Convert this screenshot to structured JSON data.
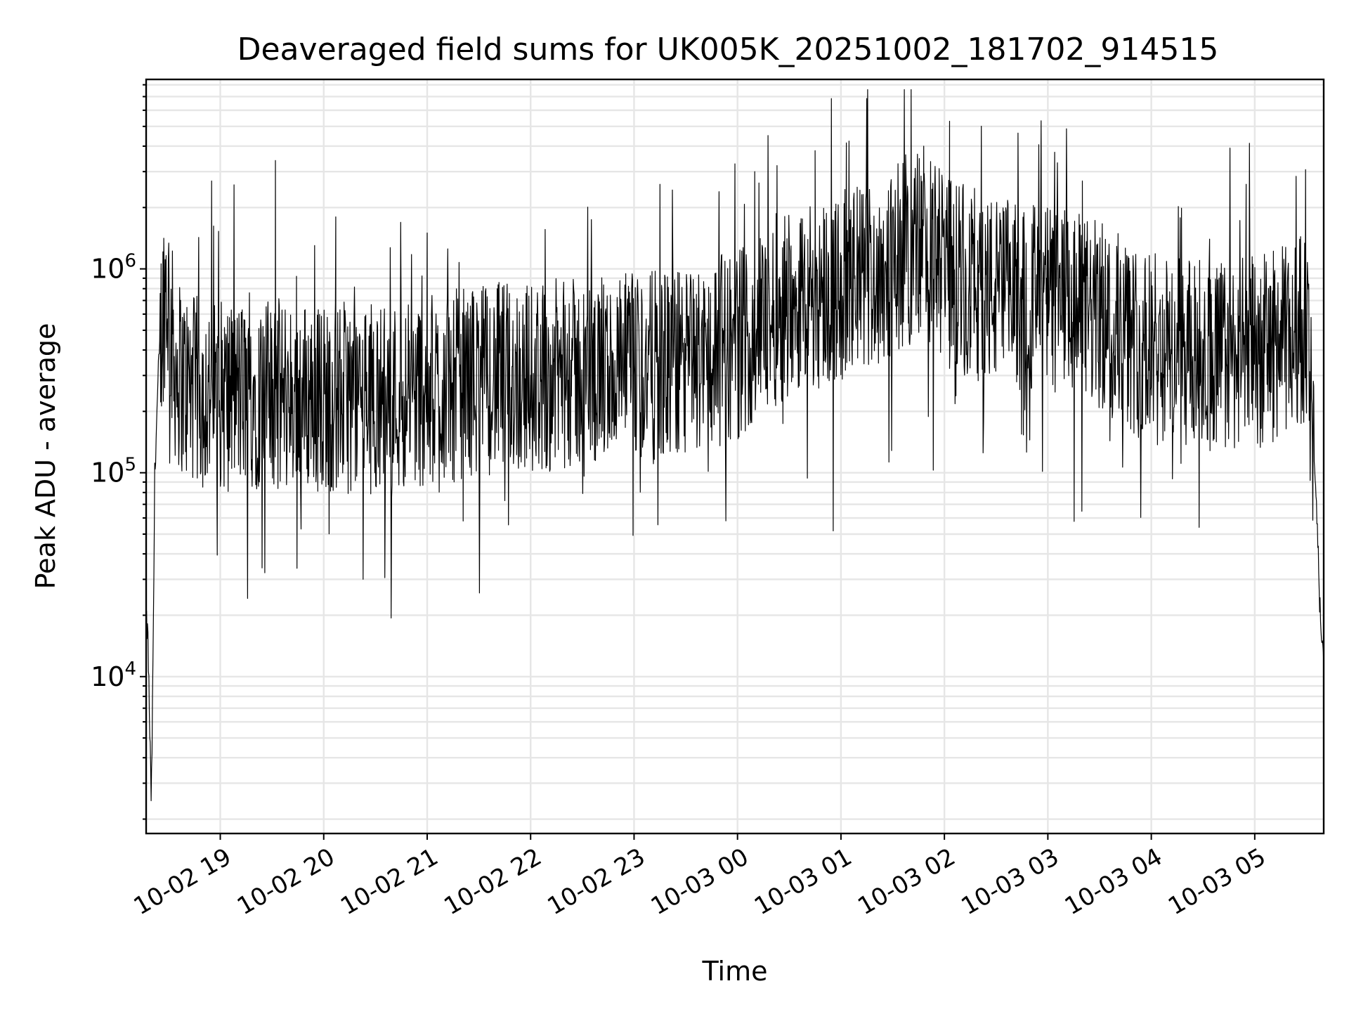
{
  "chart_data": {
    "type": "line",
    "title": "Deaveraged field sums for UK005K_20251002_181702_914515",
    "xlabel": "Time",
    "ylabel": "Peak ADU - average",
    "yscale": "log",
    "ylim": [
      1700,
      8500000
    ],
    "xlim": [
      "2025-10-02 18:17",
      "2025-10-03 05:40"
    ],
    "grid": true,
    "legend": "none",
    "line_color": "#000000",
    "x_ticks": [
      "2025-10-02 19:00",
      "2025-10-02 20:00",
      "2025-10-02 21:00",
      "2025-10-02 22:00",
      "2025-10-02 23:00",
      "2025-10-03 00:00",
      "2025-10-03 01:00",
      "2025-10-03 02:00",
      "2025-10-03 03:00",
      "2025-10-03 04:00",
      "2025-10-03 05:00"
    ],
    "x_tick_labels": [
      "10-02 19",
      "10-02 20",
      "10-02 21",
      "10-02 22",
      "10-02 23",
      "10-03 00",
      "10-03 01",
      "10-03 02",
      "10-03 03",
      "10-03 04",
      "10-03 05"
    ],
    "y_ticks": [
      10000,
      100000,
      1000000
    ],
    "y_tick_labels": [
      {
        "base": "10",
        "exp": "4"
      },
      {
        "base": "10",
        "exp": "5"
      },
      {
        "base": "10",
        "exp": "6"
      }
    ],
    "series": [
      {
        "x": [
          "2025-10-02 18:17",
          "2025-10-02 18:18",
          "2025-10-02 18:19",
          "2025-10-02 18:20",
          "2025-10-02 18:21",
          "2025-10-02 18:22",
          "2025-10-02 18:24",
          "2025-10-02 18:26",
          "2025-10-02 18:28",
          "2025-10-02 18:30",
          "2025-10-02 18:32",
          "2025-10-02 18:33",
          "2025-10-02 18:35",
          "2025-10-02 18:40",
          "2025-10-02 18:45",
          "2025-10-02 18:55",
          "2025-10-02 19:30",
          "2025-10-02 20:30",
          "2025-10-02 21:00",
          "2025-10-02 21:30",
          "2025-10-02 22:30",
          "2025-10-02 23:30",
          "2025-10-03 00:00",
          "2025-10-03 00:30",
          "2025-10-03 01:00",
          "2025-10-03 01:30",
          "2025-10-03 01:45",
          "2025-10-03 02:00",
          "2025-10-03 02:30",
          "2025-10-03 03:00",
          "2025-10-03 03:30",
          "2025-10-03 04:00",
          "2025-10-03 04:30",
          "2025-10-03 05:00",
          "2025-10-03 05:20",
          "2025-10-03 05:30",
          "2025-10-03 05:33",
          "2025-10-03 05:36",
          "2025-10-03 05:38",
          "2025-10-03 05:40"
        ],
        "y": [
          19000,
          16000,
          6000,
          2400,
          12000,
          100000,
          300000,
          600000,
          900000,
          800000,
          500000,
          400000,
          350000,
          300000,
          280000,
          270000,
          270000,
          260000,
          280000,
          320000,
          340000,
          380000,
          480000,
          800000,
          900000,
          1200000,
          1500000,
          1100000,
          850000,
          800000,
          650000,
          450000,
          420000,
          440000,
          500000,
          600000,
          200000,
          60000,
          20000,
          12000
        ]
      }
    ],
    "peaks": [
      {
        "x": "2025-10-02 18:55",
        "y": 2700000
      },
      {
        "x": "2025-10-02 19:32",
        "y": 3400000
      },
      {
        "x": "2025-10-02 20:07",
        "y": 1800000
      },
      {
        "x": "2025-10-02 21:00",
        "y": 1500000
      },
      {
        "x": "2025-10-02 23:15",
        "y": 2600000
      },
      {
        "x": "2025-10-03 00:10",
        "y": 3000000
      },
      {
        "x": "2025-10-03 00:45",
        "y": 3800000
      },
      {
        "x": "2025-10-03 01:48",
        "y": 4000000
      },
      {
        "x": "2025-10-03 02:03",
        "y": 5300000
      },
      {
        "x": "2025-10-03 03:20",
        "y": 2700000
      },
      {
        "x": "2025-10-03 04:55",
        "y": 2600000
      }
    ]
  }
}
